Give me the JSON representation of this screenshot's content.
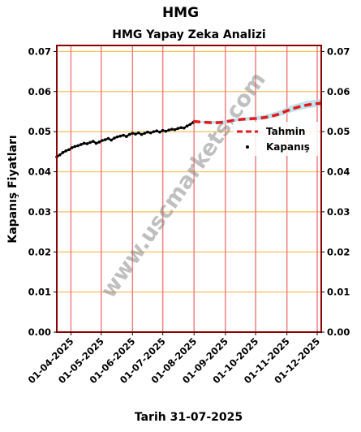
{
  "header": {
    "ticker": "HMG",
    "subtitle": "HMG Yapay Zeka Analizi",
    "date_caption": "Tarih 31-07-2025"
  },
  "watermark": "www.uscmarkets.com",
  "colors": {
    "background": "#ffffff",
    "frame": "#8b0000",
    "month_gridline": "#f08080",
    "value_gridline": "#f5c25a",
    "history_line": "#000000",
    "forecast_line": "#e41a1c",
    "forecast_band": "#add8e6",
    "watermark": "#808080"
  },
  "chart_data": {
    "type": "line",
    "title": "HMG Yapay Zeka Analizi",
    "xlabel": "Tarih 31-07-2025",
    "ylabel": "Kapanış Fiyatları",
    "ylim": [
      0.0,
      0.0715
    ],
    "xlim": [
      "2025-03-18",
      "2025-12-05"
    ],
    "yticks": [
      0.0,
      0.01,
      0.02,
      0.03,
      0.04,
      0.05,
      0.06,
      0.07
    ],
    "ytick_labels": [
      "0.00",
      "0.01",
      "0.02",
      "0.03",
      "0.04",
      "0.05",
      "0.06",
      "0.07"
    ],
    "xticks": [
      "2025-04-01",
      "2025-05-01",
      "2025-06-01",
      "2025-07-01",
      "2025-08-01",
      "2025-09-01",
      "2025-10-01",
      "2025-11-01",
      "2025-12-01"
    ],
    "xtick_labels": [
      "01-04-2025",
      "01-05-2025",
      "01-06-2025",
      "01-07-2025",
      "01-08-2025",
      "01-09-2025",
      "01-10-2025",
      "01-11-2025",
      "01-12-2025"
    ],
    "grid": true,
    "legend": {
      "placement": "right",
      "entries": [
        "Tahmin",
        "Kapanış"
      ]
    },
    "series": [
      {
        "name": "Kapanış",
        "style": "scatter",
        "x": [
          "2025-03-18",
          "2025-03-21",
          "2025-03-24",
          "2025-03-27",
          "2025-03-30",
          "2025-04-02",
          "2025-04-05",
          "2025-04-08",
          "2025-04-11",
          "2025-04-14",
          "2025-04-17",
          "2025-04-20",
          "2025-04-23",
          "2025-04-26",
          "2025-04-29",
          "2025-05-02",
          "2025-05-05",
          "2025-05-08",
          "2025-05-11",
          "2025-05-14",
          "2025-05-17",
          "2025-05-20",
          "2025-05-23",
          "2025-05-26",
          "2025-05-29",
          "2025-06-01",
          "2025-06-04",
          "2025-06-07",
          "2025-06-10",
          "2025-06-13",
          "2025-06-16",
          "2025-06-19",
          "2025-06-22",
          "2025-06-25",
          "2025-06-28",
          "2025-07-01",
          "2025-07-04",
          "2025-07-07",
          "2025-07-10",
          "2025-07-13",
          "2025-07-16",
          "2025-07-19",
          "2025-07-22",
          "2025-07-25",
          "2025-07-28",
          "2025-07-31"
        ],
        "y": [
          0.0437,
          0.0442,
          0.0448,
          0.0452,
          0.0455,
          0.046,
          0.0463,
          0.0465,
          0.0468,
          0.0471,
          0.047,
          0.0473,
          0.0476,
          0.0471,
          0.0474,
          0.0478,
          0.048,
          0.0483,
          0.0479,
          0.0484,
          0.0487,
          0.0489,
          0.0491,
          0.0488,
          0.0493,
          0.0496,
          0.0494,
          0.0497,
          0.0493,
          0.0496,
          0.0499,
          0.0497,
          0.05,
          0.0502,
          0.0499,
          0.0503,
          0.0501,
          0.0504,
          0.0506,
          0.0505,
          0.0508,
          0.051,
          0.0509,
          0.0514,
          0.0518,
          0.0523
        ]
      },
      {
        "name": "Tahmin",
        "style": "dashed-line",
        "x": [
          "2025-07-31",
          "2025-08-07",
          "2025-08-14",
          "2025-08-21",
          "2025-08-28",
          "2025-09-04",
          "2025-09-11",
          "2025-09-18",
          "2025-09-25",
          "2025-10-02",
          "2025-10-09",
          "2025-10-16",
          "2025-10-23",
          "2025-10-30",
          "2025-11-06",
          "2025-11-13",
          "2025-11-20",
          "2025-11-27",
          "2025-12-05"
        ],
        "y": [
          0.0526,
          0.0524,
          0.0523,
          0.0522,
          0.0523,
          0.0526,
          0.0529,
          0.0531,
          0.0532,
          0.0533,
          0.0535,
          0.0538,
          0.0543,
          0.055,
          0.0557,
          0.0562,
          0.0566,
          0.0569,
          0.0571
        ]
      },
      {
        "name": "",
        "style": "band",
        "x": [
          "2025-07-31",
          "2025-08-14",
          "2025-08-28",
          "2025-09-11",
          "2025-09-25",
          "2025-10-09",
          "2025-10-23",
          "2025-11-06",
          "2025-11-20",
          "2025-12-05"
        ],
        "y_low": [
          0.0526,
          0.052,
          0.0519,
          0.0525,
          0.0528,
          0.053,
          0.0537,
          0.0549,
          0.0558,
          0.0563
        ],
        "y_high": [
          0.0526,
          0.0526,
          0.0527,
          0.0533,
          0.0537,
          0.0541,
          0.0551,
          0.0566,
          0.0576,
          0.0582
        ]
      }
    ]
  }
}
